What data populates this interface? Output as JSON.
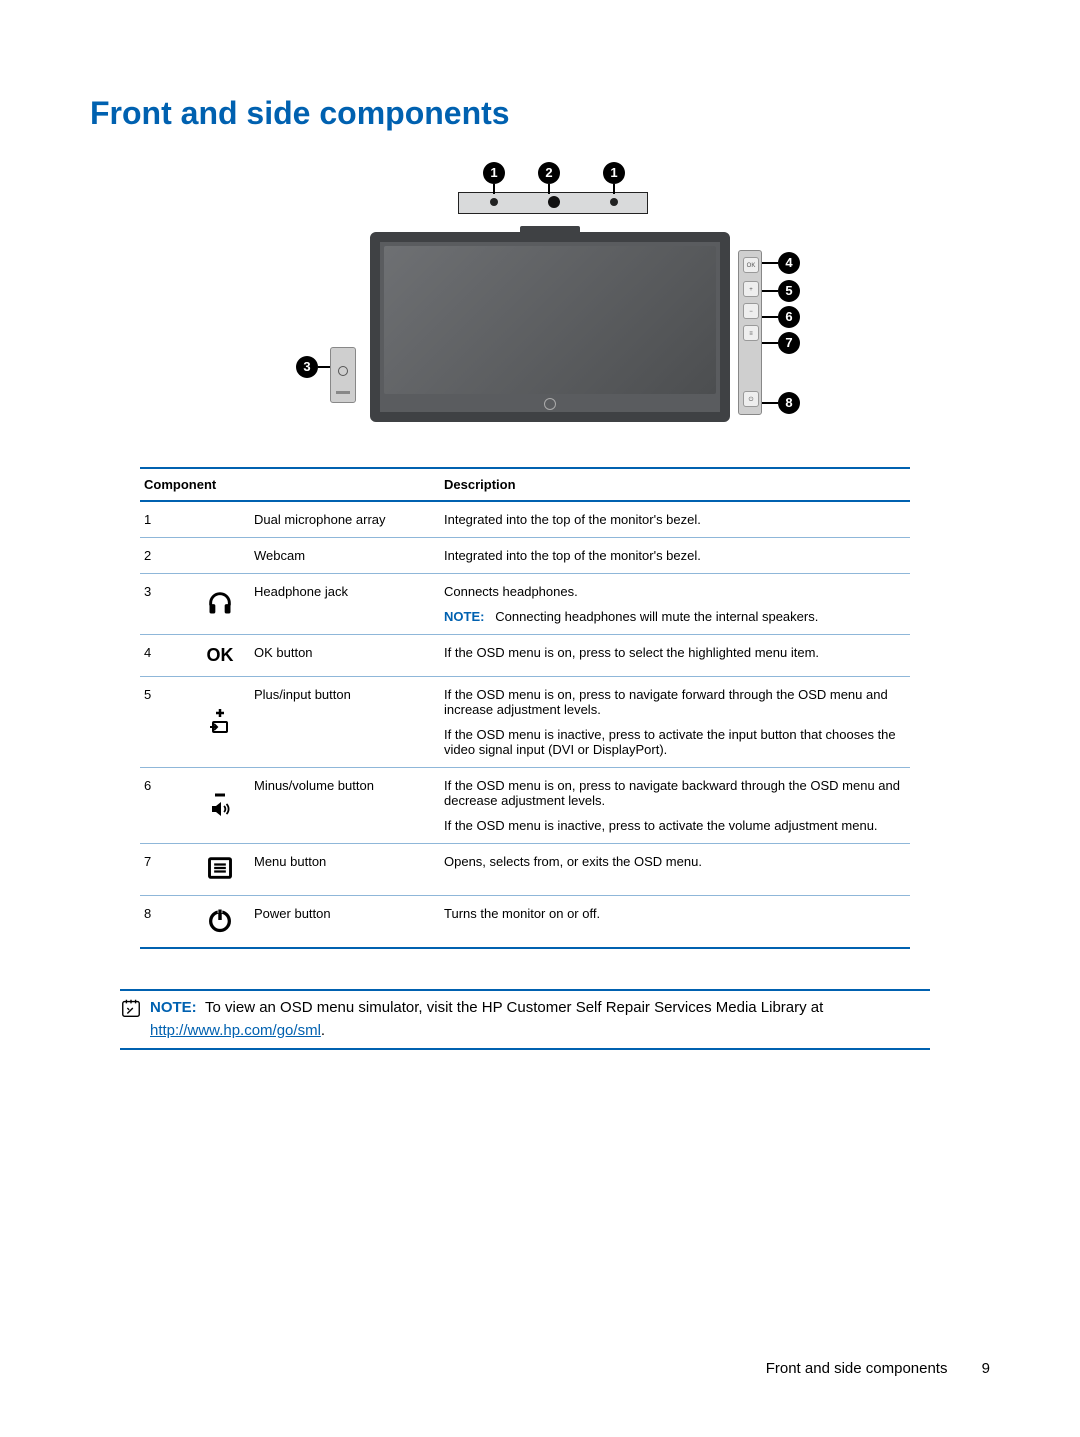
{
  "title": "Front and side components",
  "colors": {
    "heading": "#0061b0",
    "rule_thick": "#0061b0",
    "row_rule": "#8fb7d9",
    "text": "#000000",
    "bg": "#ffffff"
  },
  "table": {
    "headers": {
      "component": "Component",
      "description": "Description"
    },
    "rows": [
      {
        "num": "1",
        "icon": "",
        "name": "Dual microphone array",
        "desc": [
          {
            "text": "Integrated into the top of the monitor's bezel."
          }
        ]
      },
      {
        "num": "2",
        "icon": "",
        "name": "Webcam",
        "desc": [
          {
            "text": "Integrated into the top of the monitor's bezel."
          }
        ]
      },
      {
        "num": "3",
        "icon": "headphones",
        "name": "Headphone jack",
        "desc": [
          {
            "text": "Connects headphones."
          },
          {
            "note": "NOTE:",
            "text": "Connecting headphones will mute the internal speakers."
          }
        ]
      },
      {
        "num": "4",
        "icon": "ok",
        "name": "OK button",
        "desc": [
          {
            "text": "If the OSD menu is on, press to select the highlighted menu item."
          }
        ]
      },
      {
        "num": "5",
        "icon": "plus-input",
        "name": "Plus/input button",
        "desc": [
          {
            "text": "If the OSD menu is on, press to navigate forward through the OSD menu and increase adjustment levels."
          },
          {
            "text": "If the OSD menu is inactive, press to activate the input button that chooses the video signal input (DVI or DisplayPort)."
          }
        ]
      },
      {
        "num": "6",
        "icon": "minus-volume",
        "name": "Minus/volume button",
        "desc": [
          {
            "text": "If the OSD menu is on, press to navigate backward through the OSD menu and decrease adjustment levels."
          },
          {
            "text": "If the OSD menu is inactive, press to activate the volume adjustment menu."
          }
        ]
      },
      {
        "num": "7",
        "icon": "menu",
        "name": "Menu button",
        "desc": [
          {
            "text": "Opens, selects from, or exits the OSD menu."
          }
        ]
      },
      {
        "num": "8",
        "icon": "power",
        "name": "Power button",
        "desc": [
          {
            "text": "Turns the monitor on or off."
          }
        ]
      }
    ]
  },
  "page_note": {
    "label": "NOTE:",
    "text_before": "To view an OSD menu simulator, visit the HP Customer Self Repair Services Media Library at ",
    "link_text": "http://www.hp.com/go/sml",
    "text_after": "."
  },
  "footer": {
    "section": "Front and side components",
    "page": "9"
  },
  "diagram": {
    "top_callouts": [
      "1",
      "2",
      "1"
    ],
    "side_callouts": [
      "4",
      "5",
      "6",
      "7",
      "8"
    ],
    "left_callout": "3"
  }
}
